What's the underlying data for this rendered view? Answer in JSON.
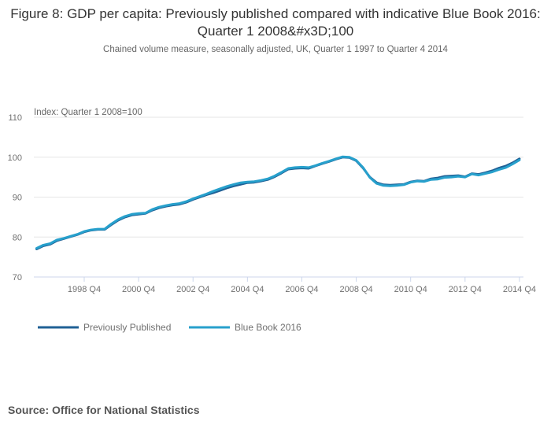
{
  "chart_data": {
    "type": "line",
    "title": "Figure 8: GDP per capita: Previously published compared with indicative Blue Book 2016: Quarter 1 2008&#x3D;100",
    "subtitle": "Chained volume measure, seasonally adjusted, UK, Quarter 1 1997 to Quarter 4 2014",
    "ylabel": "Index: Quarter 1 2008=100",
    "xlabel": "",
    "ylim": [
      70,
      110
    ],
    "yticks": [
      "70",
      "80",
      "90",
      "100",
      "110"
    ],
    "ytick_values": [
      70,
      80,
      90,
      100,
      110
    ],
    "xticks": [
      "1998 Q4",
      "2000 Q4",
      "2002 Q4",
      "2004 Q4",
      "2006 Q4",
      "2008 Q4",
      "2010 Q4",
      "2012 Q4",
      "2014 Q4"
    ],
    "xtick_indices": [
      7,
      15,
      23,
      31,
      39,
      47,
      55,
      63,
      71
    ],
    "grid": true,
    "legend_position": "bottom-left",
    "x_start": "1997 Q1",
    "x_end": "2014 Q4",
    "series": [
      {
        "name": "Previously Published",
        "color": "#206095",
        "values": [
          77.0,
          77.8,
          78.2,
          79.1,
          79.6,
          80.1,
          80.6,
          81.3,
          81.7,
          81.9,
          81.9,
          83.1,
          84.2,
          85.0,
          85.5,
          85.7,
          85.9,
          86.7,
          87.3,
          87.7,
          88.0,
          88.2,
          88.7,
          89.4,
          90.0,
          90.6,
          91.1,
          91.7,
          92.3,
          92.8,
          93.2,
          93.6,
          93.7,
          94.0,
          94.4,
          95.1,
          96.0,
          97.0,
          97.2,
          97.3,
          97.2,
          97.8,
          98.4,
          98.9,
          99.5,
          100.0,
          99.9,
          99.1,
          97.3,
          95.0,
          93.6,
          93.1,
          93.0,
          93.1,
          93.2,
          93.8,
          94.1,
          94.0,
          94.6,
          94.8,
          95.2,
          95.3,
          95.4,
          95.1,
          95.9,
          95.7,
          96.1,
          96.6,
          97.3,
          97.8,
          98.6,
          99.6
        ]
      },
      {
        "name": "Blue Book 2016",
        "color": "#27a0cc",
        "values": [
          77.2,
          78.0,
          78.4,
          79.3,
          79.7,
          80.2,
          80.7,
          81.4,
          81.8,
          82.0,
          82.0,
          83.3,
          84.4,
          85.2,
          85.7,
          85.9,
          86.0,
          86.9,
          87.5,
          87.9,
          88.2,
          88.4,
          88.9,
          89.6,
          90.2,
          90.8,
          91.5,
          92.1,
          92.7,
          93.2,
          93.6,
          93.8,
          93.9,
          94.2,
          94.6,
          95.3,
          96.2,
          97.2,
          97.4,
          97.5,
          97.4,
          97.9,
          98.5,
          99.0,
          99.6,
          100.1,
          100.0,
          99.2,
          97.4,
          94.9,
          93.4,
          92.9,
          92.8,
          92.9,
          93.1,
          93.7,
          94.0,
          93.9,
          94.4,
          94.5,
          94.9,
          95.0,
          95.2,
          95.0,
          95.8,
          95.5,
          95.9,
          96.3,
          96.9,
          97.4,
          98.3,
          99.3
        ]
      }
    ],
    "source": "Source: Office for National Statistics"
  }
}
